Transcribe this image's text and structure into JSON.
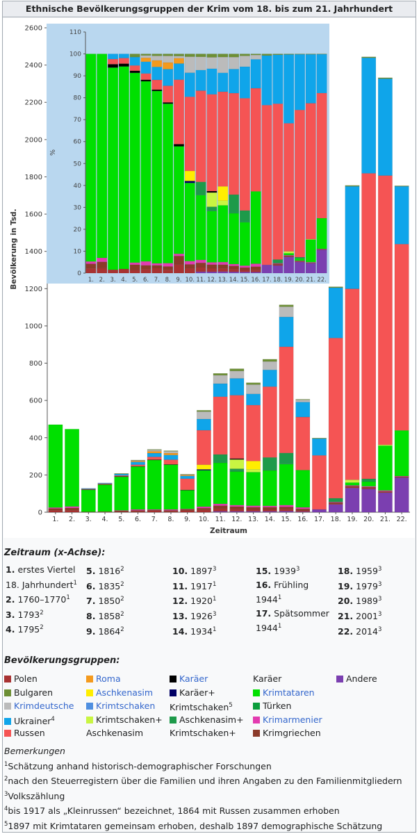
{
  "title": "Ethnische Bevölkerungsgruppen der Krim vom 18. bis zum 21. Jahrhundert",
  "chart_data": {
    "type": "bar",
    "stacked": true,
    "ylabel": "Bevölkerung in Tsd.",
    "xlabel": "Zeitraum",
    "ylim": [
      0,
      2600
    ],
    "yticks": [
      0,
      200,
      400,
      600,
      800,
      1000,
      1200,
      1400,
      1600,
      1800,
      2000,
      2200,
      2400,
      2600
    ],
    "categories": [
      "1.",
      "2.",
      "3.",
      "4.",
      "5.",
      "6.",
      "7.",
      "8.",
      "9.",
      "10.",
      "11.",
      "12.",
      "13.",
      "14.",
      "15.",
      "16.",
      "17.",
      "18.",
      "19.",
      "20.",
      "21.",
      "22."
    ],
    "series": [
      {
        "key": "andere",
        "color": "#7b3fb0",
        "values": [
          0,
          0,
          0,
          0,
          0,
          0,
          0,
          0,
          0,
          0,
          5,
          5,
          5,
          5,
          6,
          3,
          15,
          42,
          130,
          125,
          105,
          186
        ]
      },
      {
        "key": "polen",
        "color": "#a83232",
        "values": [
          10,
          10,
          2,
          3,
          3,
          5,
          8,
          5,
          8,
          12,
          15,
          12,
          10,
          10,
          10,
          6,
          0,
          5,
          5,
          5,
          4,
          2
        ]
      },
      {
        "key": "krimgriechen",
        "color": "#8b3a2a",
        "values": [
          10,
          13,
          0,
          0,
          5,
          5,
          4,
          5,
          8,
          10,
          15,
          13,
          12,
          12,
          12,
          9,
          0,
          5,
          5,
          5,
          3,
          3
        ]
      },
      {
        "key": "krimarmenier",
        "color": "#e33bb0",
        "values": [
          5,
          8,
          0,
          0,
          2,
          5,
          3,
          5,
          2,
          8,
          10,
          8,
          8,
          7,
          10,
          8,
          0,
          3,
          4,
          4,
          5,
          3
        ]
      },
      {
        "key": "krimtataren",
        "color": "#00e000",
        "values": [
          445,
          415,
          118,
          145,
          180,
          230,
          265,
          240,
          100,
          195,
          220,
          180,
          180,
          190,
          220,
          200,
          0,
          0,
          15,
          25,
          240,
          245
        ]
      },
      {
        "key": "asch_kdt",
        "color": "#1d9a4a",
        "values": [
          0,
          0,
          0,
          0,
          0,
          0,
          0,
          0,
          0,
          0,
          45,
          15,
          0,
          70,
          60,
          0,
          0,
          20,
          0,
          15,
          0,
          0
        ]
      },
      {
        "key": "karaeer_plus",
        "color": "#000066",
        "values": [
          0,
          0,
          0,
          0,
          0,
          0,
          0,
          0,
          0,
          5,
          0,
          0,
          0,
          0,
          0,
          0,
          0,
          0,
          0,
          0,
          0,
          0
        ]
      },
      {
        "key": "krimtschaken_plus",
        "color": "#c9f542",
        "values": [
          0,
          0,
          0,
          0,
          0,
          0,
          0,
          0,
          0,
          0,
          0,
          50,
          15,
          0,
          0,
          0,
          0,
          0,
          15,
          0,
          5,
          0
        ]
      },
      {
        "key": "aschkenasim",
        "color": "#ffee00",
        "values": [
          0,
          0,
          0,
          0,
          0,
          0,
          0,
          0,
          0,
          25,
          0,
          0,
          45,
          0,
          0,
          0,
          0,
          0,
          0,
          0,
          0,
          0
        ]
      },
      {
        "key": "karaeer",
        "color": "#000000",
        "values": [
          0,
          0,
          2,
          2,
          2,
          2,
          2,
          2,
          2,
          0,
          0,
          5,
          0,
          0,
          0,
          0,
          0,
          0,
          0,
          0,
          0,
          0
        ]
      },
      {
        "key": "russen",
        "color": "#f55454",
        "values": [
          0,
          0,
          3,
          4,
          5,
          8,
          15,
          25,
          60,
          185,
          310,
          340,
          300,
          380,
          570,
          285,
          290,
          860,
          1025,
          1640,
          1445,
          1000
        ]
      },
      {
        "key": "ukrainer",
        "color": "#0fa5ea",
        "values": [
          0,
          0,
          3,
          3,
          8,
          15,
          20,
          25,
          15,
          60,
          70,
          90,
          60,
          90,
          160,
          80,
          90,
          270,
          550,
          620,
          520,
          310
        ]
      },
      {
        "key": "roma",
        "color": "#f49a1e",
        "values": [
          0,
          0,
          0,
          0,
          0,
          5,
          10,
          10,
          5,
          0,
          0,
          0,
          0,
          0,
          0,
          0,
          0,
          0,
          0,
          0,
          0,
          0
        ]
      },
      {
        "key": "krimdeutsche",
        "color": "#bbbbbb",
        "values": [
          0,
          0,
          0,
          0,
          0,
          3,
          7,
          10,
          2,
          40,
          45,
          40,
          50,
          45,
          55,
          12,
          0,
          0,
          0,
          0,
          0,
          0
        ]
      },
      {
        "key": "bulgaren",
        "color": "#6d8f35",
        "values": [
          0,
          0,
          0,
          0,
          3,
          2,
          3,
          3,
          2,
          7,
          10,
          12,
          10,
          12,
          10,
          3,
          3,
          5,
          5,
          5,
          5,
          3
        ]
      }
    ],
    "inset": {
      "ylabel": "%",
      "ylim": [
        0,
        110
      ],
      "yticks": [
        0,
        10,
        20,
        30,
        40,
        50,
        60,
        70,
        80,
        90,
        100,
        110
      ],
      "xticks": [
        "1.",
        "2.",
        "3.",
        "4.",
        "5.",
        "6.",
        "7.",
        "8.",
        "9.",
        "10.",
        "11.",
        "12.",
        "13.",
        "14.",
        "15.",
        "16.",
        "17.",
        "18.",
        "19.",
        "20.",
        "21.",
        "22."
      ]
    }
  },
  "zeitraum": {
    "heading": "Zeitraum (x-Achse):",
    "columns": [
      [
        {
          "num": "1.",
          "text": "erstes Viertel",
          "sup": ""
        },
        {
          "num": "",
          "text": "18. Jahrhundert",
          "sup": "1"
        },
        {
          "num": "2.",
          "text": "1760–1770",
          "sup": "1"
        },
        {
          "num": "3.",
          "text": "1793",
          "sup": "2"
        },
        {
          "num": "4.",
          "text": "1795",
          "sup": "2"
        }
      ],
      [
        {
          "num": "5.",
          "text": "1816",
          "sup": "2"
        },
        {
          "num": "6.",
          "text": "1835",
          "sup": "2"
        },
        {
          "num": "7.",
          "text": "1850",
          "sup": "2"
        },
        {
          "num": "8.",
          "text": "1858",
          "sup": "2"
        },
        {
          "num": "9.",
          "text": "1864",
          "sup": "2"
        }
      ],
      [
        {
          "num": "10.",
          "text": "1897",
          "sup": "3"
        },
        {
          "num": "11.",
          "text": "1917",
          "sup": "1"
        },
        {
          "num": "12.",
          "text": "1920",
          "sup": "1"
        },
        {
          "num": "13.",
          "text": "1926",
          "sup": "3"
        },
        {
          "num": "14.",
          "text": "1934",
          "sup": "1"
        }
      ],
      [
        {
          "num": "15.",
          "text": "1939",
          "sup": "3"
        },
        {
          "num": "16.",
          "text": "Frühling",
          "sup": ""
        },
        {
          "num": "",
          "text": "1944",
          "sup": "1"
        },
        {
          "num": "17.",
          "text": "Spätsommer",
          "sup": ""
        },
        {
          "num": "",
          "text": "1944",
          "sup": "1"
        }
      ],
      [
        {
          "num": "18.",
          "text": "1959",
          "sup": "3"
        },
        {
          "num": "19.",
          "text": "1979",
          "sup": "3"
        },
        {
          "num": "20.",
          "text": "1989",
          "sup": "3"
        },
        {
          "num": "21.",
          "text": "2001",
          "sup": "3"
        },
        {
          "num": "22.",
          "text": "2014",
          "sup": "3"
        }
      ]
    ]
  },
  "legend": {
    "heading": "Bevölkerungsgruppen:",
    "items": [
      {
        "label": "Polen",
        "sup": "",
        "color": "#a83232",
        "link": false,
        "col": 0,
        "row": 0
      },
      {
        "label": "Bulgaren",
        "sup": "",
        "color": "#6d8f35",
        "link": false,
        "col": 0,
        "row": 1
      },
      {
        "label": "Krimdeutsche",
        "sup": "",
        "color": "#bbbbbb",
        "link": true,
        "col": 0,
        "row": 2
      },
      {
        "label": "Ukrainer",
        "sup": "4",
        "color": "#0fa5ea",
        "link": false,
        "col": 0,
        "row": 3
      },
      {
        "label": "Russen",
        "sup": "",
        "color": "#f55454",
        "link": false,
        "col": 0,
        "row": 4
      },
      {
        "label": "Roma",
        "sup": "",
        "color": "#f49a1e",
        "link": true,
        "col": 1,
        "row": 0
      },
      {
        "label": "Aschkenasim",
        "sup": "",
        "color": "#ffee00",
        "link": true,
        "col": 1,
        "row": 1
      },
      {
        "label": "Krimtschaken",
        "sup": "",
        "color": "#4f8fe0",
        "link": true,
        "col": 1,
        "row": 2
      },
      {
        "label": "Krimtschaken+",
        "sup": "",
        "color": "#c9f542",
        "link": false,
        "col": 1,
        "row": 3
      },
      {
        "label": "Aschkenasim",
        "sup": "",
        "color": "",
        "link": false,
        "col": 1,
        "row": 4
      },
      {
        "label": "Karäer",
        "sup": "",
        "color": "#000000",
        "link": true,
        "col": 2,
        "row": 0
      },
      {
        "label": "Karäer+",
        "sup": "",
        "color": "#000066",
        "link": false,
        "col": 2,
        "row": 1
      },
      {
        "label": "Krimtschaken",
        "sup": "5",
        "color": "",
        "link": false,
        "col": 2,
        "row": 2
      },
      {
        "label": "Aschkenasim+",
        "sup": "",
        "color": "#1d9a4a",
        "link": false,
        "col": 2,
        "row": 3
      },
      {
        "label": "Krimtschaken+",
        "sup": "",
        "color": "",
        "link": false,
        "col": 2,
        "row": 4
      },
      {
        "label": "Karäer",
        "sup": "",
        "color": "",
        "link": false,
        "col": 3,
        "row": 0
      },
      {
        "label": "Krimtataren",
        "sup": "",
        "color": "#00e000",
        "link": true,
        "col": 3,
        "row": 1
      },
      {
        "label": "Türken",
        "sup": "",
        "color": "#0a9d3c",
        "link": false,
        "col": 3,
        "row": 2
      },
      {
        "label": "Krimarmenier",
        "sup": "",
        "color": "#e33bb0",
        "link": true,
        "col": 3,
        "row": 3
      },
      {
        "label": "Krimgriechen",
        "sup": "",
        "color": "#8b3a2a",
        "link": false,
        "col": 3,
        "row": 4
      },
      {
        "label": "Andere",
        "sup": "",
        "color": "#7b3fb0",
        "link": false,
        "col": 4,
        "row": 0
      }
    ]
  },
  "notes": {
    "heading": "Bemerkungen",
    "items": [
      {
        "sup": "1",
        "text": "Schätzung anhand historisch-demographischer Forschungen"
      },
      {
        "sup": "2",
        "text": "nach den Steuerregistern über die Familien und ihren Angaben zu den Familienmitgliedern"
      },
      {
        "sup": "3",
        "text": "Volkszählung"
      },
      {
        "sup": "4",
        "text": "bis 1917 als „Kleinrussen“ bezeichnet, 1864 mit Russen zusammen erhoben"
      },
      {
        "sup": "5",
        "text": "1897 mit Krimtataren gemeinsam erhoben, deshalb 1897 demographische Schätzung"
      }
    ]
  }
}
